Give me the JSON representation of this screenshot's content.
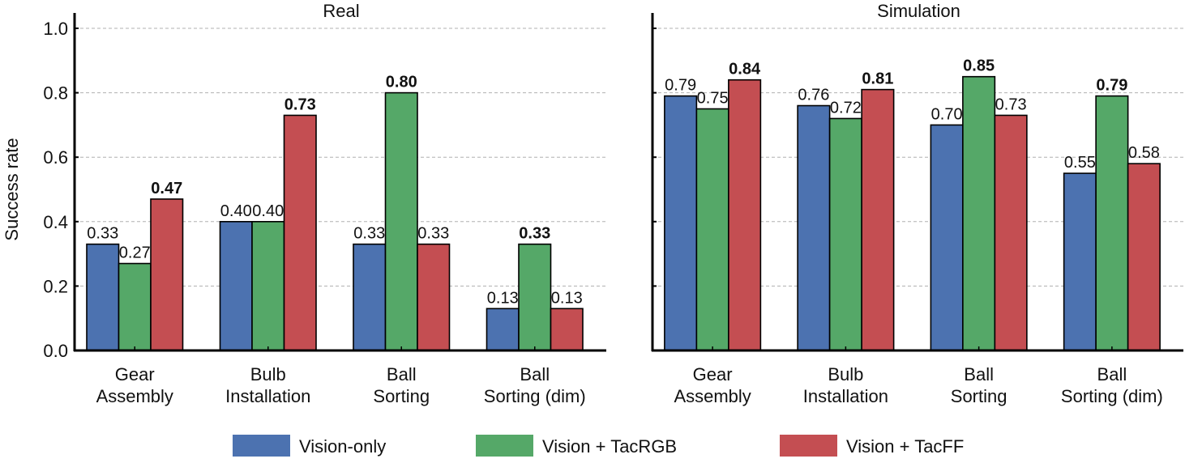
{
  "chart_data": [
    {
      "type": "bar",
      "title": "Real",
      "ylabel": "Success rate",
      "ylim": [
        0,
        1.0
      ],
      "yticks": [
        "0.0",
        "0.2",
        "0.4",
        "0.6",
        "0.8",
        "1.0"
      ],
      "grid": "horizontal dashed",
      "categories": [
        "Gear\nAssembly",
        "Bulb\nInstallation",
        "Ball\nSorting",
        "Ball\nSorting (dim)"
      ],
      "series": [
        {
          "name": "Vision-only",
          "color": "#4c72b0",
          "values": [
            0.33,
            0.4,
            0.33,
            0.13
          ],
          "labels": [
            "0.33",
            "0.40",
            "0.33",
            "0.13"
          ]
        },
        {
          "name": "Vision + TacRGB",
          "color": "#55a868",
          "values": [
            0.27,
            0.4,
            0.8,
            0.33
          ],
          "labels": [
            "0.27",
            "0.40",
            "0.80",
            "0.33"
          ]
        },
        {
          "name": "Vision + TacFF",
          "color": "#c44e52",
          "values": [
            0.47,
            0.73,
            0.33,
            0.13
          ],
          "labels": [
            "0.47",
            "0.73",
            "0.33",
            "0.13"
          ]
        }
      ],
      "bold_labels": [
        [
          2,
          0
        ],
        [
          2,
          1
        ],
        [
          1,
          2
        ],
        [
          1,
          3
        ]
      ]
    },
    {
      "type": "bar",
      "title": "Simulation",
      "ylim": [
        0,
        1.0
      ],
      "grid": "horizontal dashed",
      "categories": [
        "Gear\nAssembly",
        "Bulb\nInstallation",
        "Ball\nSorting",
        "Ball\nSorting (dim)"
      ],
      "series": [
        {
          "name": "Vision-only",
          "color": "#4c72b0",
          "values": [
            0.79,
            0.76,
            0.7,
            0.55
          ],
          "labels": [
            "0.79",
            "0.76",
            "0.70",
            "0.55"
          ]
        },
        {
          "name": "Vision + TacRGB",
          "color": "#55a868",
          "values": [
            0.75,
            0.72,
            0.85,
            0.79
          ],
          "labels": [
            "0.75",
            "0.72",
            "0.85",
            "0.79"
          ]
        },
        {
          "name": "Vision + TacFF",
          "color": "#c44e52",
          "values": [
            0.84,
            0.81,
            0.73,
            0.58
          ],
          "labels": [
            "0.84",
            "0.81",
            "0.73",
            "0.58"
          ]
        }
      ],
      "bold_labels": [
        [
          2,
          0
        ],
        [
          2,
          1
        ],
        [
          1,
          2
        ],
        [
          1,
          3
        ]
      ]
    }
  ],
  "legend": {
    "placement": "bottom-center",
    "items": [
      {
        "label": "Vision-only",
        "color": "#4c72b0"
      },
      {
        "label": "Vision + TacRGB",
        "color": "#55a868"
      },
      {
        "label": "Vision + TacFF",
        "color": "#c44e52"
      }
    ]
  }
}
